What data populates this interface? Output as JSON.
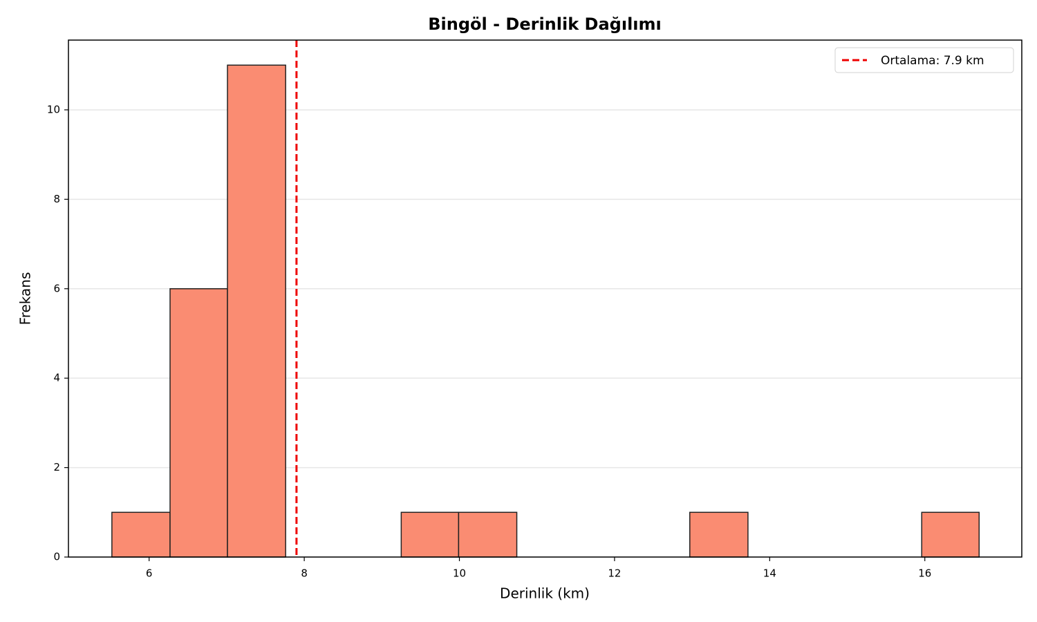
{
  "chart_data": {
    "type": "histogram",
    "title": "Bingöl - Derinlik Dağılımı",
    "x_label": "Derinlik (km)",
    "y_label": "Frekans",
    "bins": [
      5.52,
      6.27,
      7.01,
      7.76,
      8.5,
      9.25,
      9.99,
      10.74,
      11.48,
      12.23,
      12.97,
      13.72,
      14.47,
      15.21,
      15.96,
      16.7
    ],
    "values": [
      1,
      6,
      11,
      0,
      0,
      1,
      1,
      0,
      0,
      0,
      1,
      0,
      0,
      0,
      1
    ],
    "color": "#fa8c72",
    "edgecolor": "#222222",
    "mean_line": {
      "value": 7.9,
      "label": "Ortalama: 7.9 km",
      "color": "#ee0000"
    },
    "xlim": [
      4.96,
      17.25
    ],
    "xticks": [
      6,
      8,
      10,
      12,
      14,
      16
    ],
    "ylim": [
      0,
      11.56
    ],
    "yticks": [
      0,
      2,
      4,
      6,
      8,
      10
    ],
    "grid": true,
    "legend_position": "upper right"
  }
}
